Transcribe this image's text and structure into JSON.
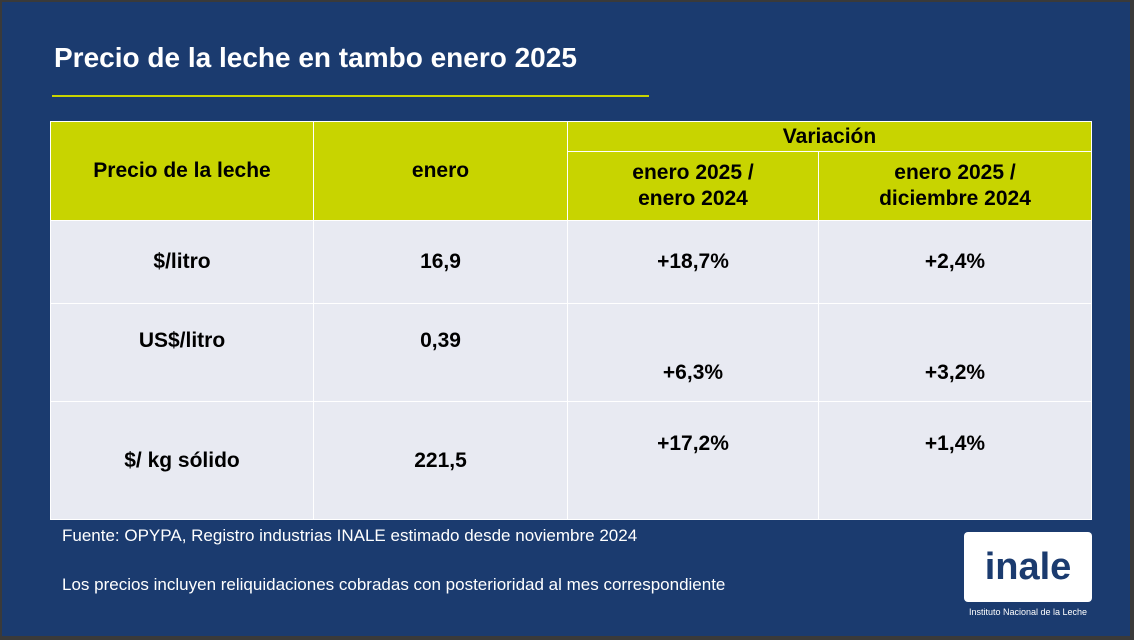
{
  "title": "Precio de la leche en tambo enero 2025",
  "colors": {
    "background": "#1b3b6f",
    "accent": "#c8d400",
    "row_bg": "#e8eaf2"
  },
  "table": {
    "header": {
      "col1": "Precio de la leche",
      "col2": "enero",
      "group": "Variación",
      "sub1_line1": "enero 2025 /",
      "sub1_line2": "enero 2024",
      "sub2_line1": "enero 2025 /",
      "sub2_line2": "diciembre 2024"
    },
    "rows": [
      {
        "label": "$/litro",
        "enero": "16,9",
        "var_anual": "+18,7%",
        "var_mensual": "+2,4%"
      },
      {
        "label": "US$/litro",
        "enero": "0,39",
        "var_anual": "+6,3%",
        "var_mensual": "+3,2%"
      },
      {
        "label": "$/ kg sólido",
        "enero": "221,5",
        "var_anual": "+17,2%",
        "var_mensual": "+1,4%"
      }
    ]
  },
  "footer": {
    "source": "Fuente: OPYPA, Registro industrias INALE estimado desde noviembre 2024",
    "note": "Los precios incluyen reliquidaciones cobradas con posterioridad al mes correspondiente"
  },
  "logo": {
    "text": "inale",
    "caption": "Instituto Nacional de la Leche"
  }
}
